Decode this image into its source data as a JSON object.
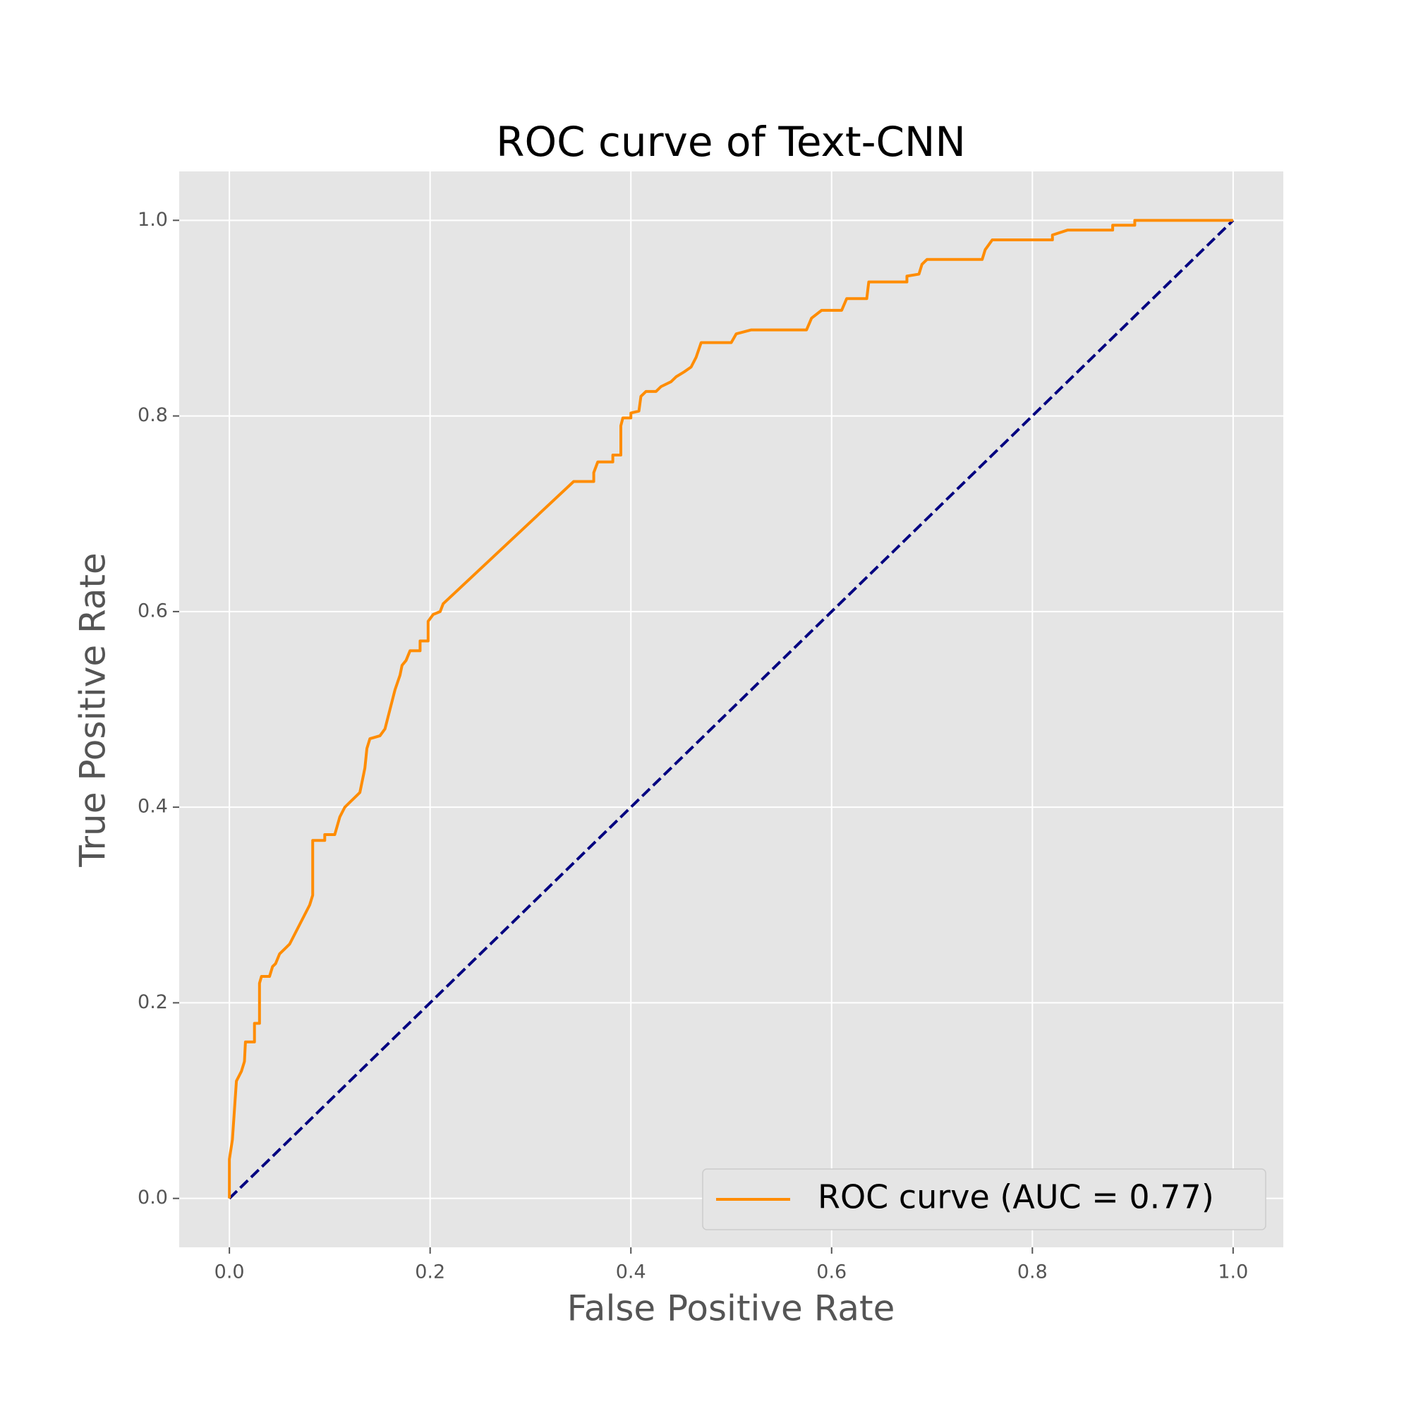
{
  "chart_data": {
    "type": "line",
    "title": "ROC curve of Text-CNN",
    "x_label": "False Positive Rate",
    "y_label": "True Positive Rate",
    "xlim": [
      -0.05,
      1.05
    ],
    "ylim": [
      -0.05,
      1.05
    ],
    "xticks": [
      {
        "value": 0,
        "label": "0.0"
      },
      0.2,
      0.4,
      0.6,
      0.8,
      {
        "value": 1,
        "label": "1.0"
      }
    ],
    "yticks": [
      {
        "value": 0,
        "label": "0.0"
      },
      0.2,
      0.4,
      0.6,
      0.8,
      {
        "value": 1,
        "label": "1.0"
      }
    ],
    "grid": true,
    "legend": "lower right",
    "series": [
      {
        "name": "ROC curve (AUC = 0.77)",
        "color": "#ff8c00",
        "dash": false,
        "x": [
          0,
          0,
          0.003,
          0.005,
          0.007,
          0.012,
          0.015,
          0.016,
          0.025,
          0.025,
          0.03,
          0.03,
          0.032,
          0.04,
          0.043,
          0.046,
          0.05,
          0.055,
          0.06,
          0.065,
          0.07,
          0.075,
          0.08,
          0.083,
          0.083,
          0.095,
          0.095,
          0.105,
          0.11,
          0.115,
          0.12,
          0.125,
          0.13,
          0.133,
          0.135,
          0.137,
          0.14,
          0.15,
          0.155,
          0.16,
          0.165,
          0.17,
          0.172,
          0.176,
          0.18,
          0.19,
          0.19,
          0.198,
          0.198,
          0.203,
          0.21,
          0.213,
          0.343,
          0.363,
          0.363,
          0.367,
          0.382,
          0.382,
          0.39,
          0.39,
          0.392,
          0.4,
          0.4,
          0.408,
          0.41,
          0.415,
          0.425,
          0.43,
          0.44,
          0.445,
          0.453,
          0.46,
          0.465,
          0.47,
          0.5,
          0.505,
          0.52,
          0.575,
          0.58,
          0.59,
          0.61,
          0.615,
          0.635,
          0.637,
          0.675,
          0.675,
          0.687,
          0.69,
          0.695,
          0.75,
          0.753,
          0.76,
          0.82,
          0.82,
          0.835,
          0.88,
          0.88,
          0.902,
          0.902,
          1
        ],
        "values": [
          0,
          0.04,
          0.06,
          0.09,
          0.12,
          0.13,
          0.14,
          0.16,
          0.16,
          0.179,
          0.179,
          0.22,
          0.227,
          0.227,
          0.237,
          0.24,
          0.25,
          0.255,
          0.26,
          0.27,
          0.28,
          0.29,
          0.3,
          0.31,
          0.366,
          0.366,
          0.372,
          0.372,
          0.39,
          0.4,
          0.405,
          0.41,
          0.415,
          0.43,
          0.44,
          0.46,
          0.47,
          0.473,
          0.48,
          0.5,
          0.52,
          0.535,
          0.545,
          0.55,
          0.56,
          0.56,
          0.57,
          0.57,
          0.59,
          0.597,
          0.6,
          0.608,
          0.733,
          0.733,
          0.742,
          0.753,
          0.753,
          0.76,
          0.76,
          0.79,
          0.798,
          0.798,
          0.803,
          0.805,
          0.82,
          0.825,
          0.825,
          0.83,
          0.835,
          0.84,
          0.845,
          0.85,
          0.86,
          0.875,
          0.875,
          0.884,
          0.888,
          0.888,
          0.9,
          0.908,
          0.908,
          0.92,
          0.92,
          0.937,
          0.937,
          0.943,
          0.945,
          0.955,
          0.96,
          0.96,
          0.97,
          0.98,
          0.98,
          0.985,
          0.99,
          0.99,
          0.995,
          0.995,
          1,
          1
        ]
      },
      {
        "color": "#000080",
        "dash": true,
        "x": [
          0,
          1
        ],
        "values": [
          0,
          1
        ]
      }
    ]
  }
}
